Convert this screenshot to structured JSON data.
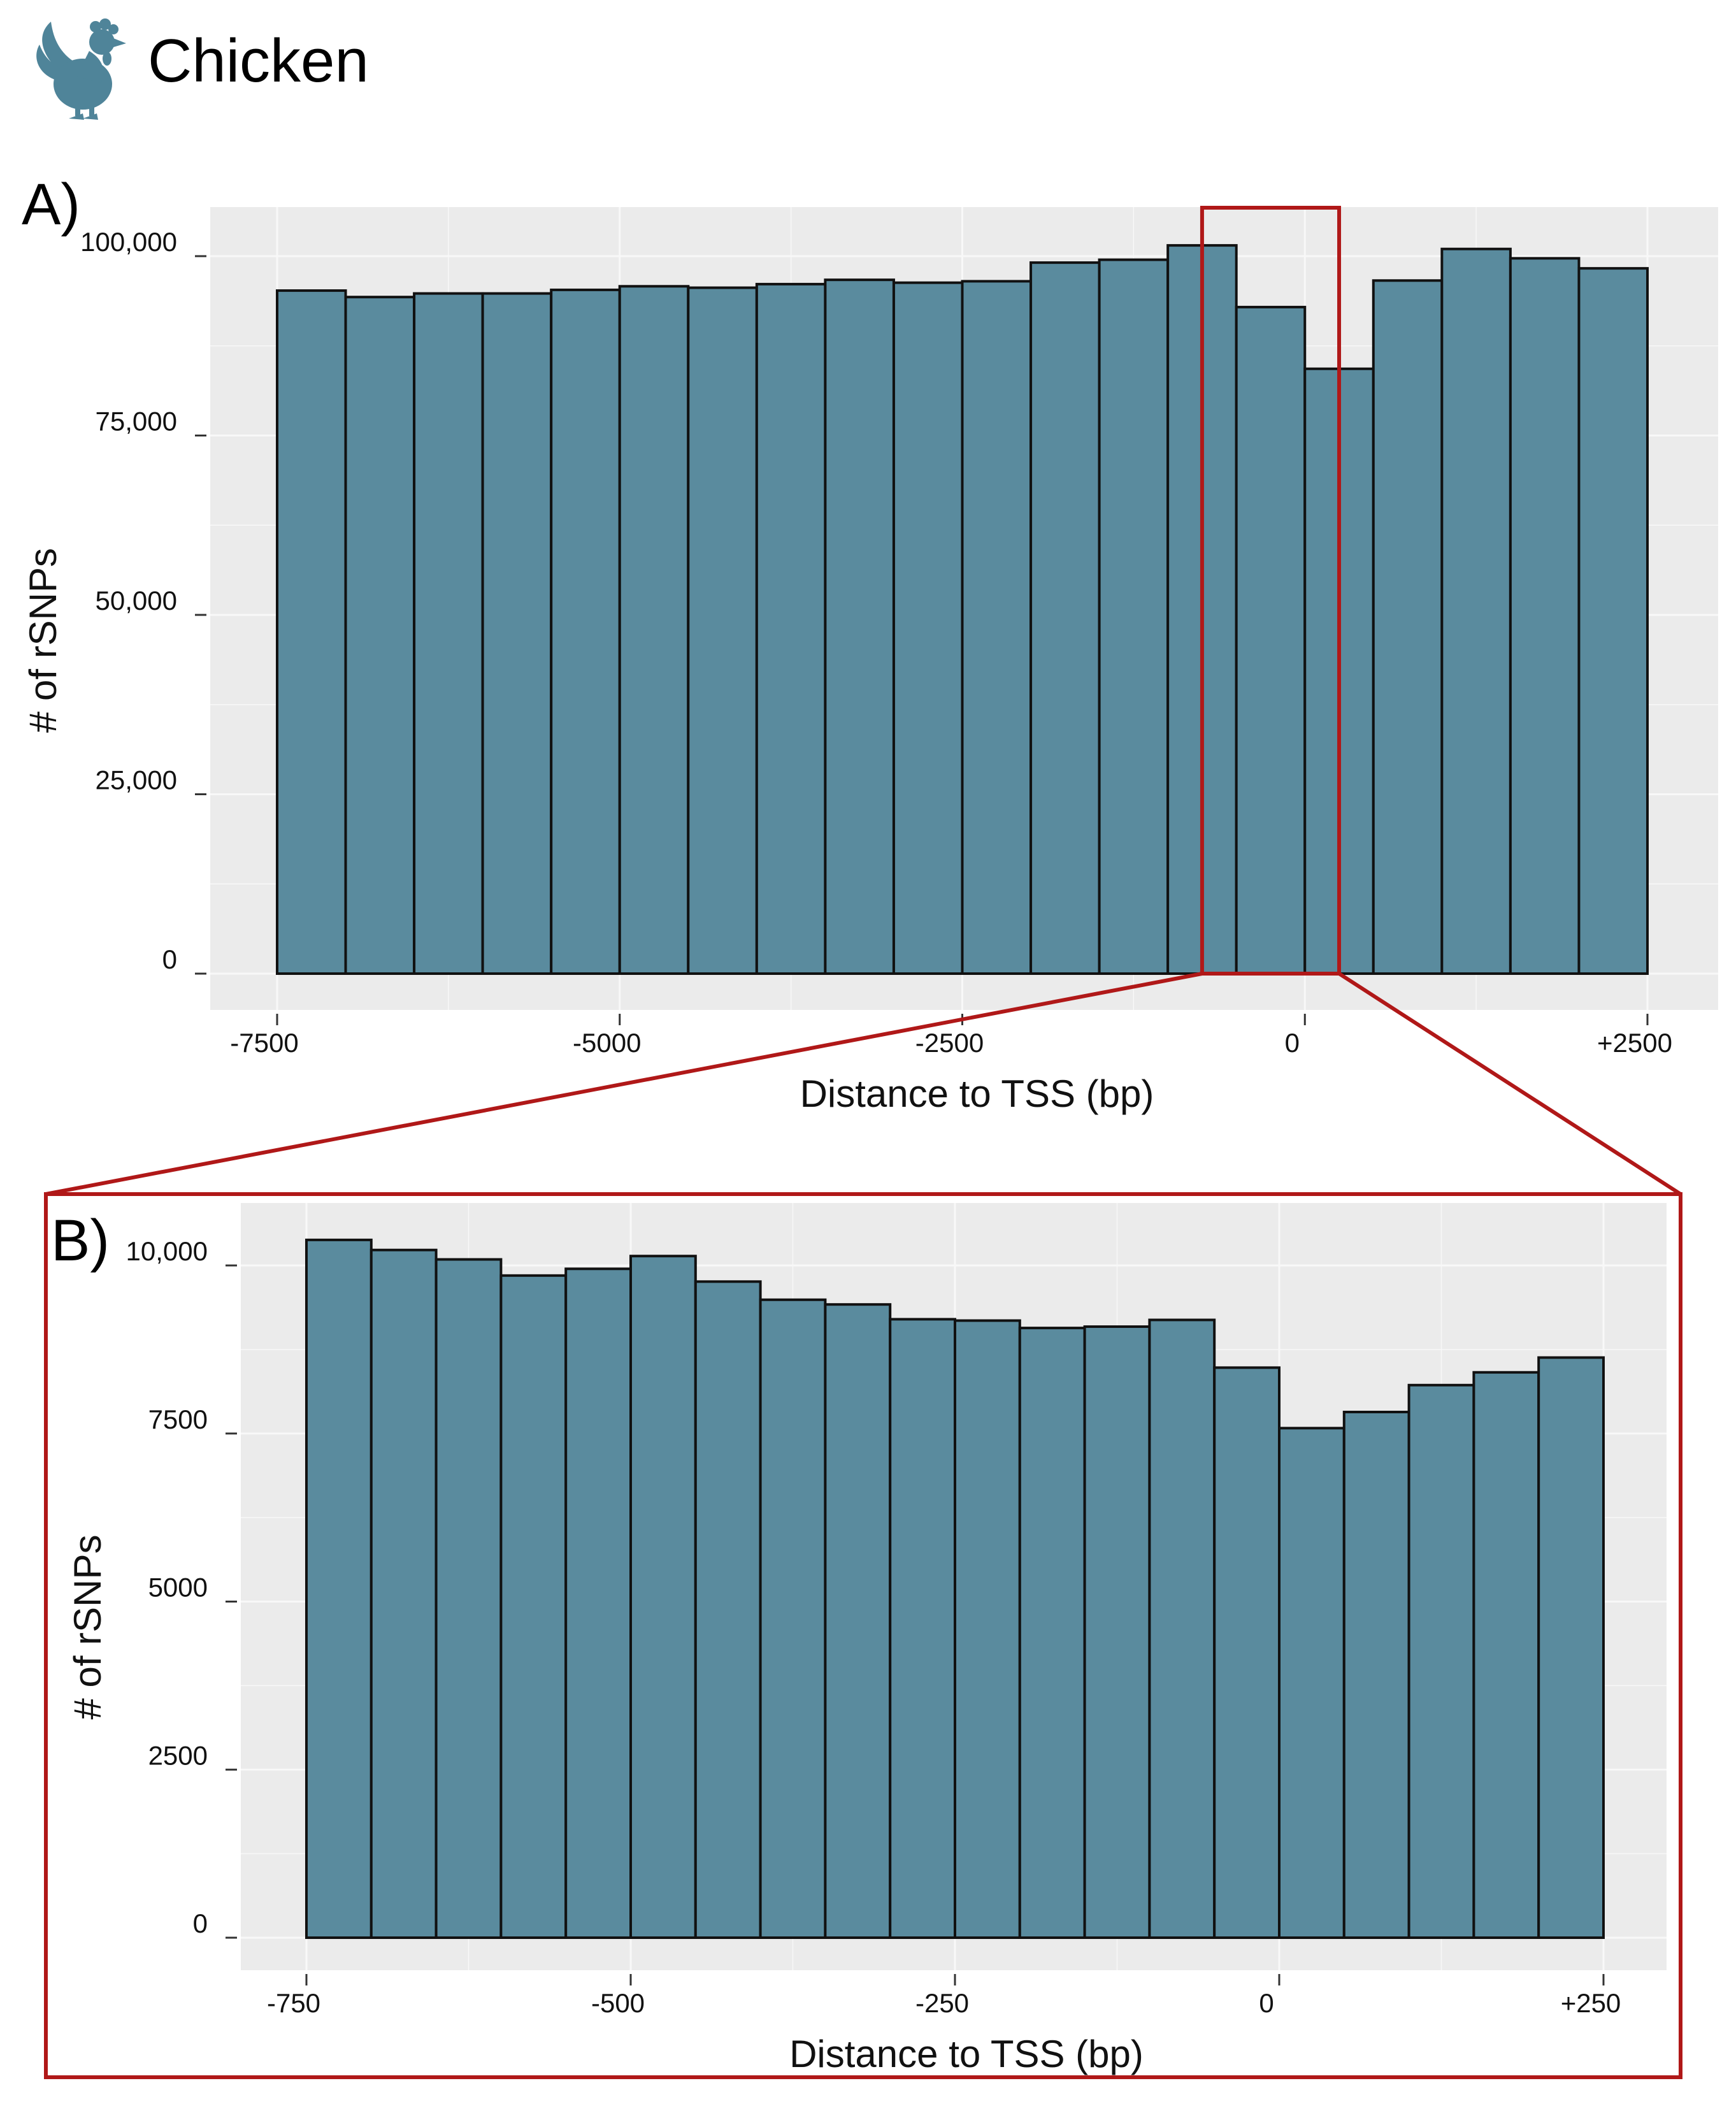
{
  "header": {
    "species_icon": "chicken-icon",
    "title": "Chicken"
  },
  "colors": {
    "bar_fill": "#5a8b9e",
    "bar_stroke": "#111111",
    "panel_bg": "#ebebeb",
    "grid": "#f8f8f8",
    "highlight": "#b01818",
    "icon": "#4f8499"
  },
  "chart_data": [
    {
      "id": "A",
      "panel_label": "A)",
      "type": "bar",
      "xlabel": "Distance to TSS (bp)",
      "ylabel": "# of rSNPs",
      "x_bin_width": 500,
      "x_ticks": [
        -7500,
        -5000,
        -2500,
        0,
        2500
      ],
      "x_tick_labels": [
        "-7500",
        "-5000",
        "-2500",
        "0",
        "+2500"
      ],
      "y_ticks": [
        0,
        25000,
        50000,
        75000,
        100000
      ],
      "y_tick_labels": [
        "0",
        "25,000",
        "50,000",
        "75,000",
        "100,000"
      ],
      "ylim": [
        0,
        103000
      ],
      "bins": [
        {
          "start": -7500,
          "value": 95200
        },
        {
          "start": -7000,
          "value": 94300
        },
        {
          "start": -6500,
          "value": 94800
        },
        {
          "start": -6000,
          "value": 94800
        },
        {
          "start": -5500,
          "value": 95300
        },
        {
          "start": -5000,
          "value": 95800
        },
        {
          "start": -4500,
          "value": 95600
        },
        {
          "start": -4000,
          "value": 96100
        },
        {
          "start": -3500,
          "value": 96700
        },
        {
          "start": -3000,
          "value": 96300
        },
        {
          "start": -2500,
          "value": 96500
        },
        {
          "start": -2000,
          "value": 99100
        },
        {
          "start": -1500,
          "value": 99500
        },
        {
          "start": -1000,
          "value": 101500
        },
        {
          "start": -500,
          "value": 92900
        },
        {
          "start": 0,
          "value": 84300
        },
        {
          "start": 500,
          "value": 96600
        },
        {
          "start": 1000,
          "value": 101000
        },
        {
          "start": 1500,
          "value": 99700
        },
        {
          "start": 2000,
          "value": 98300
        }
      ]
    },
    {
      "id": "B",
      "panel_label": "B)",
      "type": "bar",
      "xlabel": "Distance to TSS (bp)",
      "ylabel": "# of rSNPs",
      "x_bin_width": 50,
      "x_ticks": [
        -750,
        -500,
        -250,
        0,
        250
      ],
      "x_tick_labels": [
        "-750",
        "-500",
        "-250",
        "0",
        "+250"
      ],
      "y_ticks": [
        0,
        2500,
        5000,
        7500,
        10000
      ],
      "y_tick_labels": [
        "0",
        "2500",
        "5000",
        "7500",
        "10,000"
      ],
      "ylim": [
        0,
        10900
      ],
      "bins": [
        {
          "start": -750,
          "value": 10380
        },
        {
          "start": -700,
          "value": 10230
        },
        {
          "start": -650,
          "value": 10090
        },
        {
          "start": -600,
          "value": 9850
        },
        {
          "start": -550,
          "value": 9950
        },
        {
          "start": -500,
          "value": 10140
        },
        {
          "start": -450,
          "value": 9760
        },
        {
          "start": -400,
          "value": 9490
        },
        {
          "start": -350,
          "value": 9420
        },
        {
          "start": -300,
          "value": 9200
        },
        {
          "start": -250,
          "value": 9180
        },
        {
          "start": -200,
          "value": 9070
        },
        {
          "start": -150,
          "value": 9090
        },
        {
          "start": -100,
          "value": 9190
        },
        {
          "start": -50,
          "value": 8480
        },
        {
          "start": 0,
          "value": 7580
        },
        {
          "start": 50,
          "value": 7820
        },
        {
          "start": 100,
          "value": 8220
        },
        {
          "start": 150,
          "value": 8410
        },
        {
          "start": 200,
          "value": 8630
        }
      ]
    }
  ]
}
